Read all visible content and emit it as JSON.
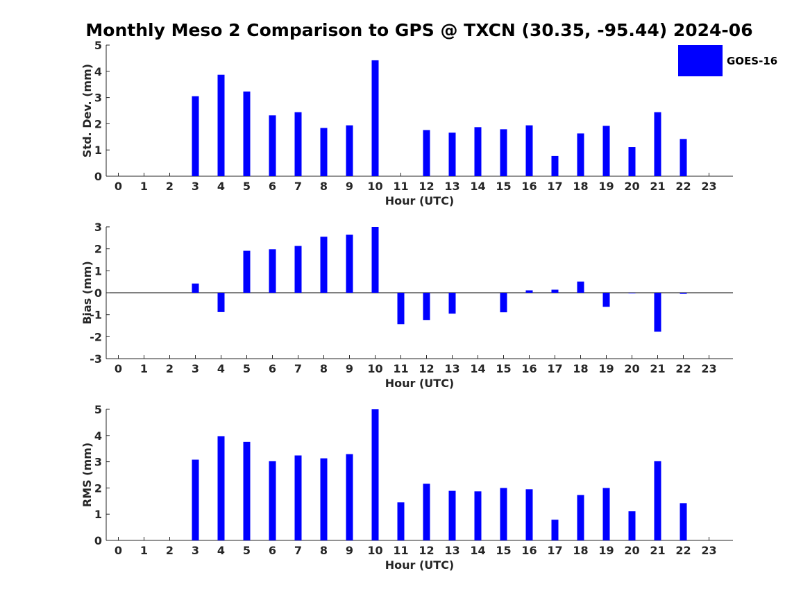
{
  "title": "Monthly Meso 2 Comparison to GPS @ TXCN (30.35, -95.44) 2024-06",
  "legend": {
    "label": "GOES-16",
    "color": "#0000ff"
  },
  "chart_data": [
    {
      "type": "bar",
      "xlabel": "Hour (UTC)",
      "ylabel": "Std. Dev. (mm)",
      "ylim": [
        0,
        5
      ],
      "yticks": [
        "0",
        "1",
        "2",
        "3",
        "4",
        "5"
      ],
      "categories": [
        "0",
        "1",
        "2",
        "3",
        "4",
        "5",
        "6",
        "7",
        "8",
        "9",
        "10",
        "11",
        "12",
        "13",
        "14",
        "15",
        "16",
        "17",
        "18",
        "19",
        "20",
        "21",
        "22",
        "23"
      ],
      "series": [
        {
          "name": "GOES-16",
          "values": [
            null,
            null,
            null,
            3.05,
            3.87,
            3.23,
            2.32,
            2.44,
            1.84,
            1.94,
            4.42,
            null,
            1.76,
            1.66,
            1.87,
            1.79,
            1.94,
            0.77,
            1.63,
            1.92,
            1.11,
            2.44,
            1.42,
            null
          ]
        }
      ],
      "grid": false,
      "legend": "top-right"
    },
    {
      "type": "bar",
      "xlabel": "Hour (UTC)",
      "ylabel": "Bias (mm)",
      "ylim": [
        -3,
        3
      ],
      "yticks": [
        "-3",
        "-2",
        "-1",
        "0",
        "1",
        "2",
        "3"
      ],
      "categories": [
        "0",
        "1",
        "2",
        "3",
        "4",
        "5",
        "6",
        "7",
        "8",
        "9",
        "10",
        "11",
        "12",
        "13",
        "14",
        "15",
        "16",
        "17",
        "18",
        "19",
        "20",
        "21",
        "22",
        "23"
      ],
      "series": [
        {
          "name": "GOES-16",
          "values": [
            null,
            null,
            null,
            0.42,
            -0.88,
            1.91,
            1.98,
            2.13,
            2.55,
            2.64,
            3.0,
            -1.43,
            -1.24,
            -0.95,
            null,
            -0.89,
            0.11,
            0.14,
            0.51,
            -0.64,
            -0.02,
            -1.77,
            -0.05,
            null
          ]
        }
      ],
      "grid": false
    },
    {
      "type": "bar",
      "xlabel": "Hour (UTC)",
      "ylabel": "RMS (mm)",
      "ylim": [
        0,
        5
      ],
      "yticks": [
        "0",
        "1",
        "2",
        "3",
        "4",
        "5"
      ],
      "categories": [
        "0",
        "1",
        "2",
        "3",
        "4",
        "5",
        "6",
        "7",
        "8",
        "9",
        "10",
        "11",
        "12",
        "13",
        "14",
        "15",
        "16",
        "17",
        "18",
        "19",
        "20",
        "21",
        "22",
        "23"
      ],
      "series": [
        {
          "name": "GOES-16",
          "values": [
            null,
            null,
            null,
            3.08,
            3.97,
            3.76,
            3.02,
            3.24,
            3.13,
            3.29,
            5.0,
            1.45,
            2.16,
            1.89,
            1.87,
            2.0,
            1.95,
            0.79,
            1.73,
            2.0,
            1.11,
            3.02,
            1.42,
            null
          ]
        }
      ],
      "grid": false
    }
  ]
}
